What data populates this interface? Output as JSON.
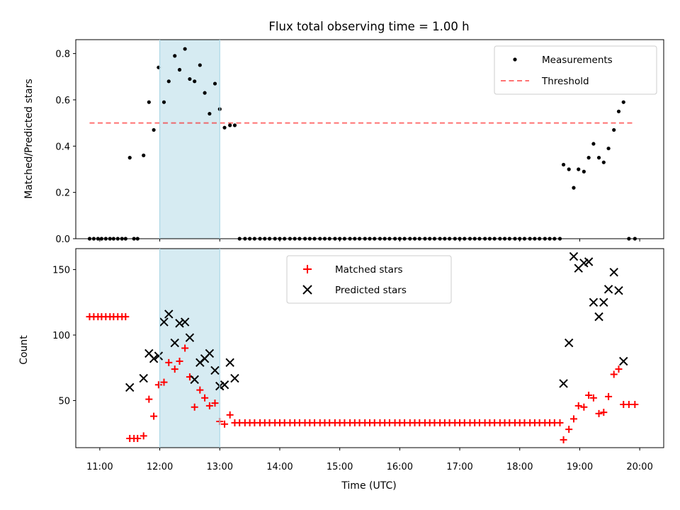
{
  "title": "Flux total observing time = 1.00 h",
  "xlabel": "Time (UTC)",
  "colors": {
    "highlight": "#add8e6",
    "threshold": "#ff0000",
    "matched": "#ff0000",
    "predicted": "#000000",
    "measure": "#000000"
  },
  "chart_data": [
    {
      "type": "scatter",
      "name": "top",
      "ylabel": "Matched/Predicted stars",
      "xlim": [
        10.6,
        20.4
      ],
      "ylim": [
        0.0,
        0.86
      ],
      "yticks": [
        0.0,
        0.2,
        0.4,
        0.6,
        0.8
      ],
      "ytick_labels": [
        "0.0",
        "0.2",
        "0.4",
        "0.6",
        "0.8"
      ],
      "highlight_span": [
        12.0,
        13.0
      ],
      "threshold": {
        "value": 0.5,
        "x_range": [
          10.83,
          19.92
        ]
      },
      "legend": {
        "location": "top-right",
        "entries": [
          "Measurements",
          "Threshold"
        ]
      },
      "series": [
        {
          "name": "Measurements",
          "points": [
            [
              10.83,
              0
            ],
            [
              10.9,
              0
            ],
            [
              10.97,
              0
            ],
            [
              11.03,
              0
            ],
            [
              11.1,
              0
            ],
            [
              11.17,
              0
            ],
            [
              11.23,
              0
            ],
            [
              11.3,
              0
            ],
            [
              11.37,
              0
            ],
            [
              11.43,
              0
            ],
            [
              11.5,
              0.35
            ],
            [
              11.57,
              0
            ],
            [
              11.63,
              0
            ],
            [
              11.73,
              0.36
            ],
            [
              11.82,
              0.59
            ],
            [
              11.9,
              0.47
            ],
            [
              11.98,
              0.74
            ],
            [
              12.07,
              0.59
            ],
            [
              12.15,
              0.68
            ],
            [
              12.25,
              0.79
            ],
            [
              12.33,
              0.73
            ],
            [
              12.42,
              0.82
            ],
            [
              12.5,
              0.69
            ],
            [
              12.58,
              0.68
            ],
            [
              12.67,
              0.75
            ],
            [
              12.75,
              0.63
            ],
            [
              12.83,
              0.54
            ],
            [
              12.92,
              0.67
            ],
            [
              13.0,
              0.56
            ],
            [
              13.08,
              0.48
            ],
            [
              13.17,
              0.49
            ],
            [
              13.25,
              0.49
            ],
            [
              13.33,
              0
            ],
            [
              13.42,
              0
            ],
            [
              13.5,
              0
            ],
            [
              13.58,
              0
            ],
            [
              13.67,
              0
            ],
            [
              13.75,
              0
            ],
            [
              13.83,
              0
            ],
            [
              13.92,
              0
            ],
            [
              14.0,
              0
            ],
            [
              14.08,
              0
            ],
            [
              14.17,
              0
            ],
            [
              14.25,
              0
            ],
            [
              14.33,
              0
            ],
            [
              14.42,
              0
            ],
            [
              14.5,
              0
            ],
            [
              14.58,
              0
            ],
            [
              14.67,
              0
            ],
            [
              14.75,
              0
            ],
            [
              14.83,
              0
            ],
            [
              14.92,
              0
            ],
            [
              15.0,
              0
            ],
            [
              15.08,
              0
            ],
            [
              15.17,
              0
            ],
            [
              15.25,
              0
            ],
            [
              15.33,
              0
            ],
            [
              15.42,
              0
            ],
            [
              15.5,
              0
            ],
            [
              15.58,
              0
            ],
            [
              15.67,
              0
            ],
            [
              15.75,
              0
            ],
            [
              15.83,
              0
            ],
            [
              15.92,
              0
            ],
            [
              16.0,
              0
            ],
            [
              16.08,
              0
            ],
            [
              16.17,
              0
            ],
            [
              16.25,
              0
            ],
            [
              16.33,
              0
            ],
            [
              16.42,
              0
            ],
            [
              16.5,
              0
            ],
            [
              16.58,
              0
            ],
            [
              16.67,
              0
            ],
            [
              16.75,
              0
            ],
            [
              16.83,
              0
            ],
            [
              16.92,
              0
            ],
            [
              17.0,
              0
            ],
            [
              17.08,
              0
            ],
            [
              17.17,
              0
            ],
            [
              17.25,
              0
            ],
            [
              17.33,
              0
            ],
            [
              17.42,
              0
            ],
            [
              17.5,
              0
            ],
            [
              17.58,
              0
            ],
            [
              17.67,
              0
            ],
            [
              17.75,
              0
            ],
            [
              17.83,
              0
            ],
            [
              17.92,
              0
            ],
            [
              18.0,
              0
            ],
            [
              18.08,
              0
            ],
            [
              18.17,
              0
            ],
            [
              18.25,
              0
            ],
            [
              18.33,
              0
            ],
            [
              18.42,
              0
            ],
            [
              18.5,
              0
            ],
            [
              18.58,
              0
            ],
            [
              18.67,
              0
            ],
            [
              18.73,
              0.32
            ],
            [
              18.82,
              0.3
            ],
            [
              18.9,
              0.22
            ],
            [
              18.98,
              0.3
            ],
            [
              19.07,
              0.29
            ],
            [
              19.15,
              0.35
            ],
            [
              19.23,
              0.41
            ],
            [
              19.32,
              0.35
            ],
            [
              19.4,
              0.33
            ],
            [
              19.48,
              0.39
            ],
            [
              19.57,
              0.47
            ],
            [
              19.65,
              0.55
            ],
            [
              19.73,
              0.59
            ],
            [
              19.82,
              0
            ],
            [
              19.92,
              0
            ]
          ]
        }
      ]
    },
    {
      "type": "scatter",
      "name": "bottom",
      "ylabel": "Count",
      "xlim": [
        10.6,
        20.4
      ],
      "ylim": [
        14,
        166
      ],
      "yticks": [
        50,
        100,
        150
      ],
      "ytick_labels": [
        "50",
        "100",
        "150"
      ],
      "xticks": [
        11,
        12,
        13,
        14,
        15,
        16,
        17,
        18,
        19,
        20
      ],
      "xtick_labels": [
        "11:00",
        "12:00",
        "13:00",
        "14:00",
        "15:00",
        "16:00",
        "17:00",
        "18:00",
        "19:00",
        "20:00"
      ],
      "highlight_span": [
        12.0,
        13.0
      ],
      "legend": {
        "location": "upper-center",
        "entries": [
          "Matched stars",
          "Predicted stars"
        ]
      },
      "series": [
        {
          "name": "Matched stars",
          "marker": "plus",
          "points": [
            [
              10.83,
              114
            ],
            [
              10.9,
              114
            ],
            [
              10.97,
              114
            ],
            [
              11.03,
              114
            ],
            [
              11.1,
              114
            ],
            [
              11.17,
              114
            ],
            [
              11.23,
              114
            ],
            [
              11.3,
              114
            ],
            [
              11.37,
              114
            ],
            [
              11.43,
              114
            ],
            [
              11.5,
              21
            ],
            [
              11.57,
              21
            ],
            [
              11.63,
              21
            ],
            [
              11.73,
              23
            ],
            [
              11.82,
              51
            ],
            [
              11.9,
              38
            ],
            [
              11.98,
              62
            ],
            [
              12.07,
              64
            ],
            [
              12.15,
              79
            ],
            [
              12.25,
              74
            ],
            [
              12.33,
              80
            ],
            [
              12.42,
              90
            ],
            [
              12.5,
              68
            ],
            [
              12.58,
              45
            ],
            [
              12.67,
              58
            ],
            [
              12.75,
              52
            ],
            [
              12.83,
              46
            ],
            [
              12.92,
              48
            ],
            [
              13.0,
              34
            ],
            [
              13.08,
              32
            ],
            [
              13.17,
              39
            ],
            [
              13.25,
              33
            ],
            [
              13.33,
              33
            ],
            [
              13.42,
              33
            ],
            [
              13.5,
              33
            ],
            [
              13.58,
              33
            ],
            [
              13.67,
              33
            ],
            [
              13.75,
              33
            ],
            [
              13.83,
              33
            ],
            [
              13.92,
              33
            ],
            [
              14.0,
              33
            ],
            [
              14.08,
              33
            ],
            [
              14.17,
              33
            ],
            [
              14.25,
              33
            ],
            [
              14.33,
              33
            ],
            [
              14.42,
              33
            ],
            [
              14.5,
              33
            ],
            [
              14.58,
              33
            ],
            [
              14.67,
              33
            ],
            [
              14.75,
              33
            ],
            [
              14.83,
              33
            ],
            [
              14.92,
              33
            ],
            [
              15.0,
              33
            ],
            [
              15.08,
              33
            ],
            [
              15.17,
              33
            ],
            [
              15.25,
              33
            ],
            [
              15.33,
              33
            ],
            [
              15.42,
              33
            ],
            [
              15.5,
              33
            ],
            [
              15.58,
              33
            ],
            [
              15.67,
              33
            ],
            [
              15.75,
              33
            ],
            [
              15.83,
              33
            ],
            [
              15.92,
              33
            ],
            [
              16.0,
              33
            ],
            [
              16.08,
              33
            ],
            [
              16.17,
              33
            ],
            [
              16.25,
              33
            ],
            [
              16.33,
              33
            ],
            [
              16.42,
              33
            ],
            [
              16.5,
              33
            ],
            [
              16.58,
              33
            ],
            [
              16.67,
              33
            ],
            [
              16.75,
              33
            ],
            [
              16.83,
              33
            ],
            [
              16.92,
              33
            ],
            [
              17.0,
              33
            ],
            [
              17.08,
              33
            ],
            [
              17.17,
              33
            ],
            [
              17.25,
              33
            ],
            [
              17.33,
              33
            ],
            [
              17.42,
              33
            ],
            [
              17.5,
              33
            ],
            [
              17.58,
              33
            ],
            [
              17.67,
              33
            ],
            [
              17.75,
              33
            ],
            [
              17.83,
              33
            ],
            [
              17.92,
              33
            ],
            [
              18.0,
              33
            ],
            [
              18.08,
              33
            ],
            [
              18.17,
              33
            ],
            [
              18.25,
              33
            ],
            [
              18.33,
              33
            ],
            [
              18.42,
              33
            ],
            [
              18.5,
              33
            ],
            [
              18.58,
              33
            ],
            [
              18.67,
              33
            ],
            [
              18.73,
              20
            ],
            [
              18.82,
              28
            ],
            [
              18.9,
              36
            ],
            [
              18.98,
              46
            ],
            [
              19.07,
              45
            ],
            [
              19.15,
              54
            ],
            [
              19.23,
              52
            ],
            [
              19.32,
              40
            ],
            [
              19.4,
              41
            ],
            [
              19.48,
              53
            ],
            [
              19.57,
              70
            ],
            [
              19.65,
              74
            ],
            [
              19.73,
              47
            ],
            [
              19.82,
              47
            ],
            [
              19.92,
              47
            ]
          ]
        },
        {
          "name": "Predicted stars",
          "marker": "x",
          "points": [
            [
              11.5,
              60
            ],
            [
              11.73,
              67
            ],
            [
              11.82,
              86
            ],
            [
              11.9,
              82
            ],
            [
              11.98,
              84
            ],
            [
              12.07,
              110
            ],
            [
              12.15,
              116
            ],
            [
              12.25,
              94
            ],
            [
              12.33,
              109
            ],
            [
              12.42,
              110
            ],
            [
              12.5,
              98
            ],
            [
              12.58,
              66
            ],
            [
              12.67,
              79
            ],
            [
              12.75,
              82
            ],
            [
              12.83,
              86
            ],
            [
              12.92,
              73
            ],
            [
              13.0,
              61
            ],
            [
              13.08,
              62
            ],
            [
              13.17,
              79
            ],
            [
              13.25,
              67
            ],
            [
              18.73,
              63
            ],
            [
              18.82,
              94
            ],
            [
              18.9,
              160
            ],
            [
              18.98,
              151
            ],
            [
              19.07,
              155
            ],
            [
              19.15,
              156
            ],
            [
              19.23,
              125
            ],
            [
              19.32,
              114
            ],
            [
              19.4,
              125
            ],
            [
              19.48,
              135
            ],
            [
              19.57,
              148
            ],
            [
              19.65,
              134
            ],
            [
              19.73,
              80
            ]
          ]
        }
      ]
    }
  ]
}
